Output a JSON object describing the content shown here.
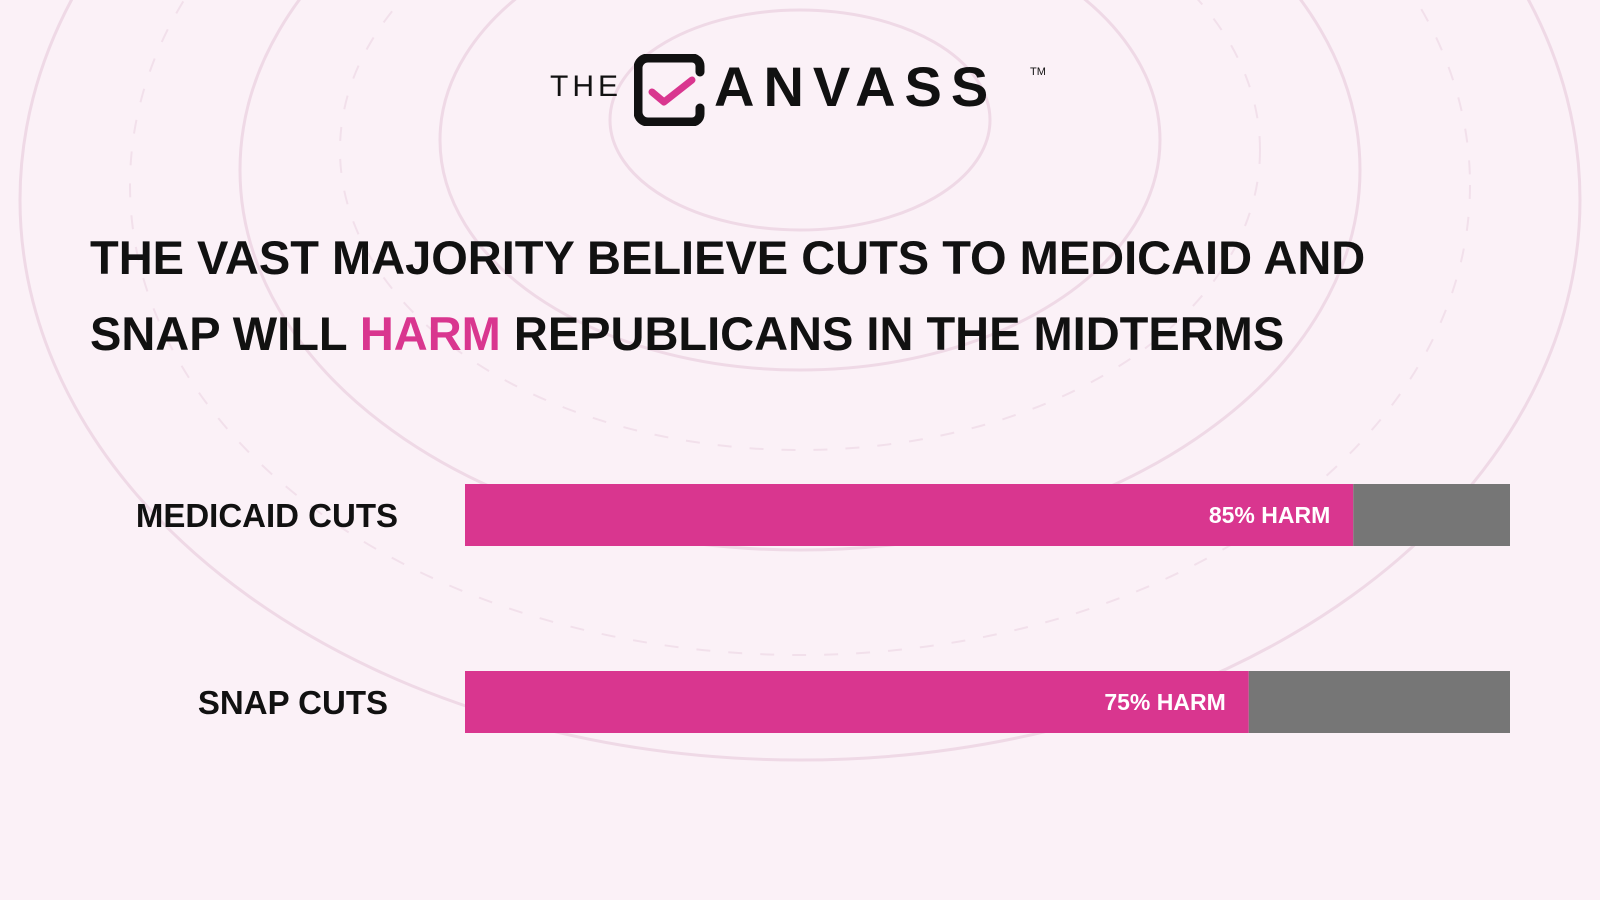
{
  "logo": {
    "prefix": "THE",
    "name": "CANVASS",
    "wordmark_rest": "ANVASS",
    "trademark": "TM",
    "icon": "checkbox-check-icon"
  },
  "headline": {
    "line1": "THE VAST MAJORITY BELIEVE CUTS TO MEDICAID AND",
    "line2_before": "SNAP WILL ",
    "line2_accent": "HARM",
    "line2_after": " REPUBLICANS IN THE MIDTERMS"
  },
  "colors": {
    "harm": "#d9368f",
    "remainder": "#767676",
    "accent": "#d9368f",
    "text": "#111111",
    "background": "#fbf1f7"
  },
  "chart_data": {
    "type": "bar",
    "orientation": "horizontal",
    "stacked": true,
    "categories": [
      "MEDICAID CUTS",
      "SNAP CUTS"
    ],
    "series": [
      {
        "values": [
          85,
          75
        ],
        "labels": [
          "85% HARM",
          "75% HARM"
        ]
      },
      {
        "values": [
          15,
          25
        ]
      }
    ],
    "xlim": [
      0,
      100
    ],
    "unit": "%",
    "grid": false
  }
}
